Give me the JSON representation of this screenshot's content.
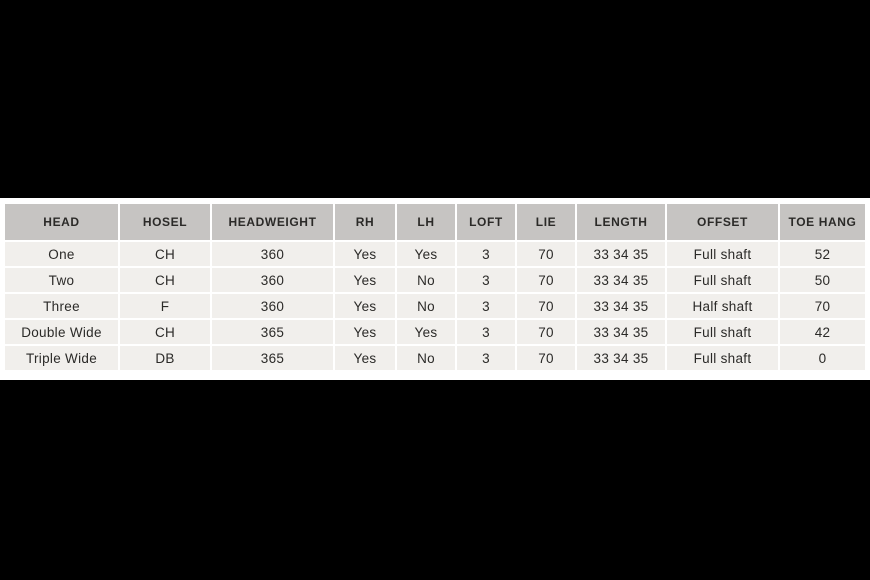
{
  "page": {
    "background_color": "#000000",
    "panel_color": "#ffffff"
  },
  "table": {
    "header_bg": "#c6c4c2",
    "row_bg": "#f1efec",
    "gap_color": "#ffffff",
    "text_color": "#2b2a28",
    "columns": [
      "HEAD",
      "HOSEL",
      "HEADWEIGHT",
      "RH",
      "LH",
      "LOFT",
      "LIE",
      "LENGTH",
      "OFFSET",
      "TOE HANG"
    ],
    "rows": [
      [
        "One",
        "CH",
        "360",
        "Yes",
        "Yes",
        "3",
        "70",
        "33 34 35",
        "Full shaft",
        "52"
      ],
      [
        "Two",
        "CH",
        "360",
        "Yes",
        "No",
        "3",
        "70",
        "33 34 35",
        "Full shaft",
        "50"
      ],
      [
        "Three",
        "F",
        "360",
        "Yes",
        "No",
        "3",
        "70",
        "33 34 35",
        "Half shaft",
        "70"
      ],
      [
        "Double Wide",
        "CH",
        "365",
        "Yes",
        "Yes",
        "3",
        "70",
        "33 34 35",
        "Full shaft",
        "42"
      ],
      [
        "Triple Wide",
        "DB",
        "365",
        "Yes",
        "No",
        "3",
        "70",
        "33 34 35",
        "Full shaft",
        "0"
      ]
    ]
  }
}
